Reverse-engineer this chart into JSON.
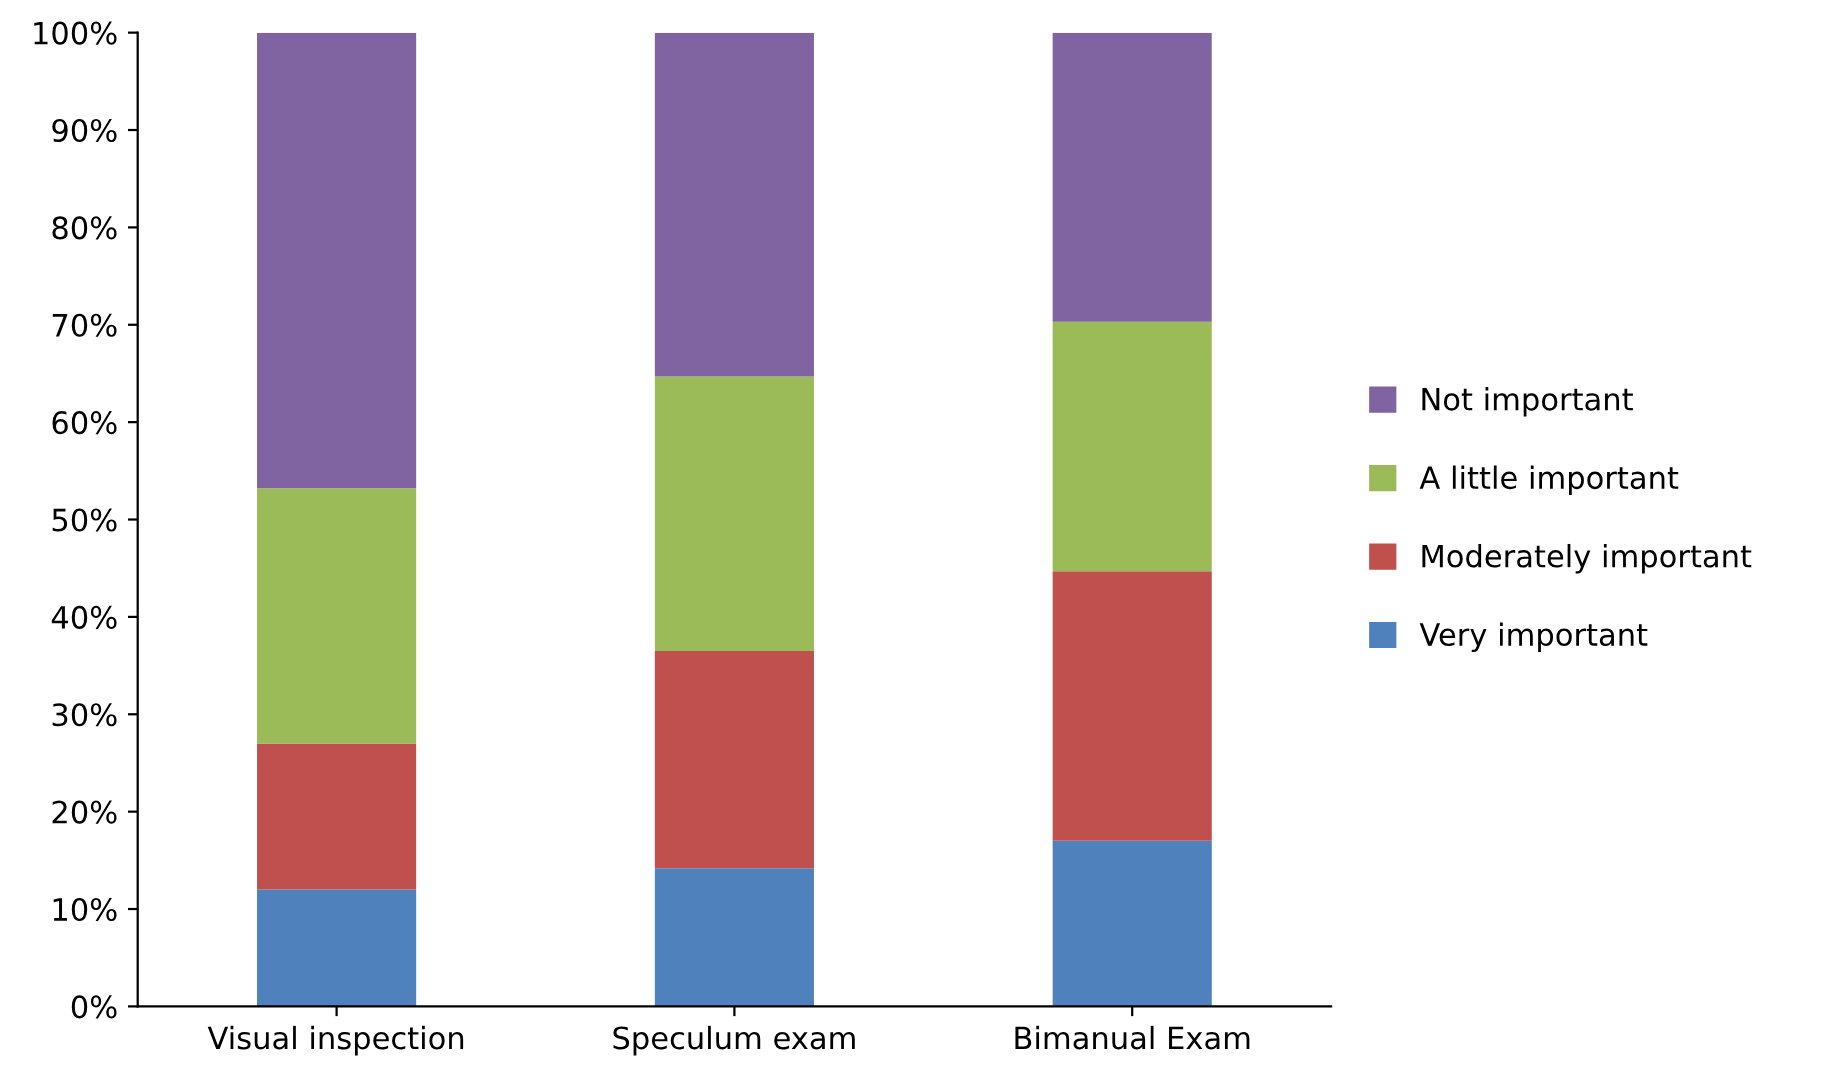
{
  "chart_data": {
    "type": "bar",
    "stacked": true,
    "categories": [
      "Visual inspection",
      "Speculum exam",
      "Bimanual Exam"
    ],
    "series": [
      {
        "name": "Very important",
        "color": "#4f81bd",
        "values": [
          12,
          14.2,
          17
        ]
      },
      {
        "name": "Moderately important",
        "color": "#c0504d",
        "values": [
          15,
          22.3,
          27.7
        ]
      },
      {
        "name": "A little important",
        "color": "#9bbb59",
        "values": [
          26.2,
          28.2,
          25.6
        ]
      },
      {
        "name": "Not important",
        "color": "#8064a2",
        "values": [
          46.8,
          35.3,
          29.7
        ]
      }
    ],
    "ylim": [
      0,
      100
    ],
    "yticks": [
      {
        "value": 0,
        "label": "0%"
      },
      {
        "value": 10,
        "label": "10%"
      },
      {
        "value": 20,
        "label": "20%"
      },
      {
        "value": 30,
        "label": "30%"
      },
      {
        "value": 40,
        "label": "40%"
      },
      {
        "value": 50,
        "label": "50%"
      },
      {
        "value": 60,
        "label": "60%"
      },
      {
        "value": 70,
        "label": "70%"
      },
      {
        "value": 80,
        "label": "80%"
      },
      {
        "value": 90,
        "label": "90%"
      },
      {
        "value": 100,
        "label": "100%"
      }
    ],
    "grid": false,
    "legend": "right"
  }
}
